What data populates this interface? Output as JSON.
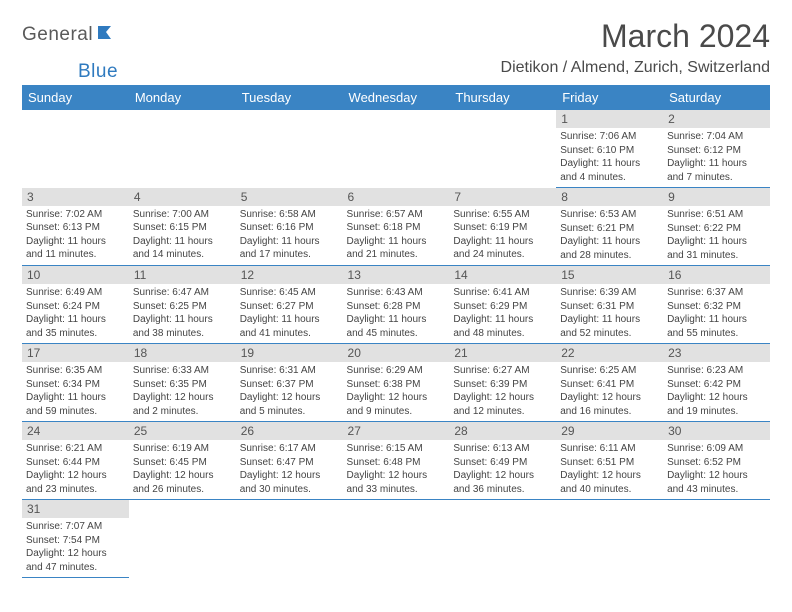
{
  "brand": {
    "part1": "General",
    "part2": "Blue"
  },
  "title": "March 2024",
  "location": "Dietikon / Almend, Zurich, Switzerland",
  "colors": {
    "header_bg": "#3a84c4",
    "header_text": "#ffffff",
    "daynum_bg": "#e1e1e1",
    "border": "#3a84c4",
    "brand_gray": "#5a5a5a",
    "brand_blue": "#2f7abf"
  },
  "fonts": {
    "title_size": 32,
    "location_size": 16,
    "dayhead_size": 13,
    "daynum_size": 12,
    "body_size": 10
  },
  "weekdays": [
    "Sunday",
    "Monday",
    "Tuesday",
    "Wednesday",
    "Thursday",
    "Friday",
    "Saturday"
  ],
  "weeks": [
    [
      null,
      null,
      null,
      null,
      null,
      {
        "n": "1",
        "sr": "Sunrise: 7:06 AM",
        "ss": "Sunset: 6:10 PM",
        "dl": "Daylight: 11 hours and 4 minutes."
      },
      {
        "n": "2",
        "sr": "Sunrise: 7:04 AM",
        "ss": "Sunset: 6:12 PM",
        "dl": "Daylight: 11 hours and 7 minutes."
      }
    ],
    [
      {
        "n": "3",
        "sr": "Sunrise: 7:02 AM",
        "ss": "Sunset: 6:13 PM",
        "dl": "Daylight: 11 hours and 11 minutes."
      },
      {
        "n": "4",
        "sr": "Sunrise: 7:00 AM",
        "ss": "Sunset: 6:15 PM",
        "dl": "Daylight: 11 hours and 14 minutes."
      },
      {
        "n": "5",
        "sr": "Sunrise: 6:58 AM",
        "ss": "Sunset: 6:16 PM",
        "dl": "Daylight: 11 hours and 17 minutes."
      },
      {
        "n": "6",
        "sr": "Sunrise: 6:57 AM",
        "ss": "Sunset: 6:18 PM",
        "dl": "Daylight: 11 hours and 21 minutes."
      },
      {
        "n": "7",
        "sr": "Sunrise: 6:55 AM",
        "ss": "Sunset: 6:19 PM",
        "dl": "Daylight: 11 hours and 24 minutes."
      },
      {
        "n": "8",
        "sr": "Sunrise: 6:53 AM",
        "ss": "Sunset: 6:21 PM",
        "dl": "Daylight: 11 hours and 28 minutes."
      },
      {
        "n": "9",
        "sr": "Sunrise: 6:51 AM",
        "ss": "Sunset: 6:22 PM",
        "dl": "Daylight: 11 hours and 31 minutes."
      }
    ],
    [
      {
        "n": "10",
        "sr": "Sunrise: 6:49 AM",
        "ss": "Sunset: 6:24 PM",
        "dl": "Daylight: 11 hours and 35 minutes."
      },
      {
        "n": "11",
        "sr": "Sunrise: 6:47 AM",
        "ss": "Sunset: 6:25 PM",
        "dl": "Daylight: 11 hours and 38 minutes."
      },
      {
        "n": "12",
        "sr": "Sunrise: 6:45 AM",
        "ss": "Sunset: 6:27 PM",
        "dl": "Daylight: 11 hours and 41 minutes."
      },
      {
        "n": "13",
        "sr": "Sunrise: 6:43 AM",
        "ss": "Sunset: 6:28 PM",
        "dl": "Daylight: 11 hours and 45 minutes."
      },
      {
        "n": "14",
        "sr": "Sunrise: 6:41 AM",
        "ss": "Sunset: 6:29 PM",
        "dl": "Daylight: 11 hours and 48 minutes."
      },
      {
        "n": "15",
        "sr": "Sunrise: 6:39 AM",
        "ss": "Sunset: 6:31 PM",
        "dl": "Daylight: 11 hours and 52 minutes."
      },
      {
        "n": "16",
        "sr": "Sunrise: 6:37 AM",
        "ss": "Sunset: 6:32 PM",
        "dl": "Daylight: 11 hours and 55 minutes."
      }
    ],
    [
      {
        "n": "17",
        "sr": "Sunrise: 6:35 AM",
        "ss": "Sunset: 6:34 PM",
        "dl": "Daylight: 11 hours and 59 minutes."
      },
      {
        "n": "18",
        "sr": "Sunrise: 6:33 AM",
        "ss": "Sunset: 6:35 PM",
        "dl": "Daylight: 12 hours and 2 minutes."
      },
      {
        "n": "19",
        "sr": "Sunrise: 6:31 AM",
        "ss": "Sunset: 6:37 PM",
        "dl": "Daylight: 12 hours and 5 minutes."
      },
      {
        "n": "20",
        "sr": "Sunrise: 6:29 AM",
        "ss": "Sunset: 6:38 PM",
        "dl": "Daylight: 12 hours and 9 minutes."
      },
      {
        "n": "21",
        "sr": "Sunrise: 6:27 AM",
        "ss": "Sunset: 6:39 PM",
        "dl": "Daylight: 12 hours and 12 minutes."
      },
      {
        "n": "22",
        "sr": "Sunrise: 6:25 AM",
        "ss": "Sunset: 6:41 PM",
        "dl": "Daylight: 12 hours and 16 minutes."
      },
      {
        "n": "23",
        "sr": "Sunrise: 6:23 AM",
        "ss": "Sunset: 6:42 PM",
        "dl": "Daylight: 12 hours and 19 minutes."
      }
    ],
    [
      {
        "n": "24",
        "sr": "Sunrise: 6:21 AM",
        "ss": "Sunset: 6:44 PM",
        "dl": "Daylight: 12 hours and 23 minutes."
      },
      {
        "n": "25",
        "sr": "Sunrise: 6:19 AM",
        "ss": "Sunset: 6:45 PM",
        "dl": "Daylight: 12 hours and 26 minutes."
      },
      {
        "n": "26",
        "sr": "Sunrise: 6:17 AM",
        "ss": "Sunset: 6:47 PM",
        "dl": "Daylight: 12 hours and 30 minutes."
      },
      {
        "n": "27",
        "sr": "Sunrise: 6:15 AM",
        "ss": "Sunset: 6:48 PM",
        "dl": "Daylight: 12 hours and 33 minutes."
      },
      {
        "n": "28",
        "sr": "Sunrise: 6:13 AM",
        "ss": "Sunset: 6:49 PM",
        "dl": "Daylight: 12 hours and 36 minutes."
      },
      {
        "n": "29",
        "sr": "Sunrise: 6:11 AM",
        "ss": "Sunset: 6:51 PM",
        "dl": "Daylight: 12 hours and 40 minutes."
      },
      {
        "n": "30",
        "sr": "Sunrise: 6:09 AM",
        "ss": "Sunset: 6:52 PM",
        "dl": "Daylight: 12 hours and 43 minutes."
      }
    ],
    [
      {
        "n": "31",
        "sr": "Sunrise: 7:07 AM",
        "ss": "Sunset: 7:54 PM",
        "dl": "Daylight: 12 hours and 47 minutes."
      },
      null,
      null,
      null,
      null,
      null,
      null
    ]
  ]
}
